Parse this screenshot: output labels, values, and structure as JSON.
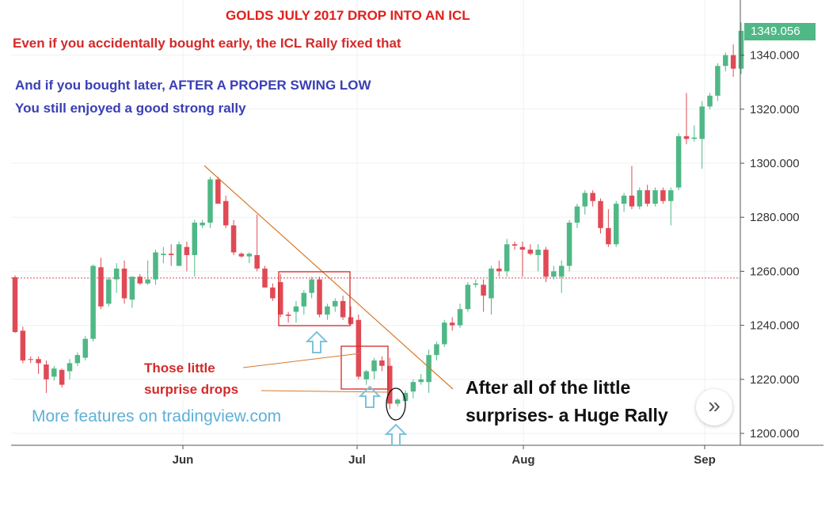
{
  "annotations": {
    "title": "GOLDS JULY 2017 DROP INTO AN ICL",
    "note_red": "Even if you accidentally bought early, the ICL Rally fixed that",
    "note_blue_1": "And if you bought later, AFTER A PROPER SWING LOW",
    "note_blue_2": "You still enjoyed a good strong rally",
    "drops_1": "Those little",
    "drops_2": "surprise drops",
    "rally_1": "After all of the little",
    "rally_2": "surprises- a Huge Rally",
    "watermark": "More features on tradingview.com"
  },
  "last_price": "1349.056",
  "scroll_icon": "chevron-double-right-icon",
  "colors": {
    "up": "#4fb886",
    "down": "#e04a55",
    "annotation_red": "#d42a2a",
    "annotation_blue": "#3a3fb5",
    "trendline": "#d77a2a",
    "arrow": "#7cc3dc"
  },
  "chart_data": {
    "type": "candlestick",
    "title": "GOLDS JULY 2017 DROP INTO AN ICL",
    "ylim": [
      1195,
      1355
    ],
    "y_ticks": [
      "1200.000",
      "1220.000",
      "1240.000",
      "1260.000",
      "1280.000",
      "1300.000",
      "1320.000",
      "1340.000"
    ],
    "x_ticks": [
      "Jun",
      "Jul",
      "Aug",
      "Sep"
    ],
    "reference_level": 1257.5,
    "candles": [
      {
        "o": 1257.8,
        "h": 1258.5,
        "l": 1237.2,
        "c": 1237.5
      },
      {
        "o": 1238,
        "h": 1239.5,
        "l": 1226,
        "c": 1227
      },
      {
        "o": 1227.5,
        "h": 1228.5,
        "l": 1226,
        "c": 1227.2
      },
      {
        "o": 1227.5,
        "h": 1228.5,
        "l": 1222,
        "c": 1226
      },
      {
        "o": 1225.5,
        "h": 1227,
        "l": 1215,
        "c": 1220
      },
      {
        "o": 1221,
        "h": 1225,
        "l": 1219.5,
        "c": 1224
      },
      {
        "o": 1223.5,
        "h": 1224,
        "l": 1217,
        "c": 1218
      },
      {
        "o": 1223,
        "h": 1227.5,
        "l": 1220,
        "c": 1226
      },
      {
        "o": 1226,
        "h": 1230,
        "l": 1225,
        "c": 1229
      },
      {
        "o": 1228,
        "h": 1236,
        "l": 1227,
        "c": 1235
      },
      {
        "o": 1235,
        "h": 1262.5,
        "l": 1234,
        "c": 1262
      },
      {
        "o": 1261.5,
        "h": 1265,
        "l": 1246,
        "c": 1247
      },
      {
        "o": 1248,
        "h": 1257.8,
        "l": 1247,
        "c": 1257
      },
      {
        "o": 1257,
        "h": 1263,
        "l": 1252,
        "c": 1261
      },
      {
        "o": 1261,
        "h": 1264,
        "l": 1248,
        "c": 1250
      },
      {
        "o": 1249.5,
        "h": 1258,
        "l": 1246.5,
        "c": 1258
      },
      {
        "o": 1258,
        "h": 1259,
        "l": 1255,
        "c": 1255.5
      },
      {
        "o": 1255.5,
        "h": 1264,
        "l": 1255,
        "c": 1257
      },
      {
        "o": 1257,
        "h": 1268,
        "l": 1255,
        "c": 1267
      },
      {
        "o": 1266,
        "h": 1269,
        "l": 1263,
        "c": 1266.5
      },
      {
        "o": 1266.5,
        "h": 1270,
        "l": 1262,
        "c": 1266
      },
      {
        "o": 1262,
        "h": 1271,
        "l": 1262,
        "c": 1270
      },
      {
        "o": 1269,
        "h": 1271,
        "l": 1260,
        "c": 1266
      },
      {
        "o": 1266,
        "h": 1279,
        "l": 1258,
        "c": 1278
      },
      {
        "o": 1277,
        "h": 1279,
        "l": 1276,
        "c": 1278
      },
      {
        "o": 1278,
        "h": 1295,
        "l": 1276,
        "c": 1294
      },
      {
        "o": 1294,
        "h": 1295,
        "l": 1285,
        "c": 1285
      },
      {
        "o": 1286,
        "h": 1288,
        "l": 1276,
        "c": 1277
      },
      {
        "o": 1277,
        "h": 1279,
        "l": 1266,
        "c": 1267
      },
      {
        "o": 1266.5,
        "h": 1267,
        "l": 1265,
        "c": 1265.5
      },
      {
        "o": 1265.5,
        "h": 1267,
        "l": 1263,
        "c": 1266.5
      },
      {
        "o": 1266,
        "h": 1281,
        "l": 1260,
        "c": 1261
      },
      {
        "o": 1261,
        "h": 1262,
        "l": 1254,
        "c": 1254
      },
      {
        "o": 1254,
        "h": 1255.5,
        "l": 1249,
        "c": 1250
      },
      {
        "o": 1256,
        "h": 1259,
        "l": 1243,
        "c": 1244
      },
      {
        "o": 1244,
        "h": 1245,
        "l": 1241,
        "c": 1243.5
      },
      {
        "o": 1245,
        "h": 1249,
        "l": 1241,
        "c": 1247
      },
      {
        "o": 1247,
        "h": 1253,
        "l": 1244,
        "c": 1252
      },
      {
        "o": 1252,
        "h": 1258,
        "l": 1250,
        "c": 1257
      },
      {
        "o": 1257,
        "h": 1258,
        "l": 1243,
        "c": 1244
      },
      {
        "o": 1244,
        "h": 1248,
        "l": 1242,
        "c": 1247
      },
      {
        "o": 1247,
        "h": 1250,
        "l": 1245,
        "c": 1249
      },
      {
        "o": 1249,
        "h": 1251,
        "l": 1242,
        "c": 1243
      },
      {
        "o": 1243,
        "h": 1247,
        "l": 1240,
        "c": 1240.5
      },
      {
        "o": 1242,
        "h": 1244,
        "l": 1220,
        "c": 1221
      },
      {
        "o": 1220,
        "h": 1223.5,
        "l": 1218,
        "c": 1223
      },
      {
        "o": 1223,
        "h": 1228,
        "l": 1220,
        "c": 1227
      },
      {
        "o": 1227,
        "h": 1228.5,
        "l": 1223,
        "c": 1225
      },
      {
        "o": 1225,
        "h": 1228,
        "l": 1209,
        "c": 1211
      },
      {
        "o": 1211,
        "h": 1213,
        "l": 1210,
        "c": 1212.5
      },
      {
        "o": 1212,
        "h": 1216,
        "l": 1210.5,
        "c": 1215
      },
      {
        "o": 1215.5,
        "h": 1220,
        "l": 1213,
        "c": 1219
      },
      {
        "o": 1219,
        "h": 1222,
        "l": 1218,
        "c": 1220
      },
      {
        "o": 1219,
        "h": 1231,
        "l": 1215,
        "c": 1229
      },
      {
        "o": 1229,
        "h": 1234,
        "l": 1227,
        "c": 1233
      },
      {
        "o": 1233,
        "h": 1242,
        "l": 1232,
        "c": 1241
      },
      {
        "o": 1241,
        "h": 1243,
        "l": 1238,
        "c": 1240
      },
      {
        "o": 1240,
        "h": 1248,
        "l": 1239,
        "c": 1246
      },
      {
        "o": 1246,
        "h": 1256,
        "l": 1245,
        "c": 1255
      },
      {
        "o": 1255,
        "h": 1257,
        "l": 1254,
        "c": 1255.5
      },
      {
        "o": 1255,
        "h": 1257,
        "l": 1245,
        "c": 1251
      },
      {
        "o": 1250,
        "h": 1262,
        "l": 1244,
        "c": 1261
      },
      {
        "o": 1261,
        "h": 1264,
        "l": 1258,
        "c": 1260
      },
      {
        "o": 1260,
        "h": 1272,
        "l": 1258,
        "c": 1270
      },
      {
        "o": 1270,
        "h": 1271,
        "l": 1268,
        "c": 1269.5
      },
      {
        "o": 1269,
        "h": 1271,
        "l": 1258,
        "c": 1268
      },
      {
        "o": 1268,
        "h": 1270,
        "l": 1266,
        "c": 1266.5
      },
      {
        "o": 1266,
        "h": 1270,
        "l": 1260,
        "c": 1268
      },
      {
        "o": 1268,
        "h": 1269,
        "l": 1256,
        "c": 1258
      },
      {
        "o": 1258,
        "h": 1262,
        "l": 1257,
        "c": 1260
      },
      {
        "o": 1258,
        "h": 1264,
        "l": 1252,
        "c": 1262
      },
      {
        "o": 1262,
        "h": 1279,
        "l": 1260,
        "c": 1278
      },
      {
        "o": 1278,
        "h": 1285,
        "l": 1276,
        "c": 1284
      },
      {
        "o": 1284,
        "h": 1290,
        "l": 1281,
        "c": 1289
      },
      {
        "o": 1289,
        "h": 1290,
        "l": 1284,
        "c": 1286
      },
      {
        "o": 1286,
        "h": 1287,
        "l": 1274,
        "c": 1276
      },
      {
        "o": 1276,
        "h": 1283,
        "l": 1269,
        "c": 1270
      },
      {
        "o": 1270,
        "h": 1286,
        "l": 1269,
        "c": 1285
      },
      {
        "o": 1285,
        "h": 1289,
        "l": 1282,
        "c": 1288
      },
      {
        "o": 1288,
        "h": 1299,
        "l": 1283,
        "c": 1284
      },
      {
        "o": 1284,
        "h": 1291,
        "l": 1283,
        "c": 1290
      },
      {
        "o": 1290,
        "h": 1292,
        "l": 1284,
        "c": 1285
      },
      {
        "o": 1285,
        "h": 1291,
        "l": 1284,
        "c": 1290
      },
      {
        "o": 1290,
        "h": 1291,
        "l": 1285,
        "c": 1286
      },
      {
        "o": 1286,
        "h": 1291,
        "l": 1277,
        "c": 1290
      },
      {
        "o": 1291,
        "h": 1311,
        "l": 1290,
        "c": 1310
      },
      {
        "o": 1310,
        "h": 1326,
        "l": 1307,
        "c": 1309
      },
      {
        "o": 1309,
        "h": 1314,
        "l": 1308,
        "c": 1309.5
      },
      {
        "o": 1309,
        "h": 1323,
        "l": 1298,
        "c": 1321
      },
      {
        "o": 1321,
        "h": 1326,
        "l": 1320,
        "c": 1325
      },
      {
        "o": 1325,
        "h": 1337,
        "l": 1323,
        "c": 1336
      },
      {
        "o": 1336,
        "h": 1341,
        "l": 1334,
        "c": 1340
      },
      {
        "o": 1340,
        "h": 1344,
        "l": 1332,
        "c": 1335
      },
      {
        "o": 1335,
        "h": 1352,
        "l": 1333,
        "c": 1349
      }
    ]
  }
}
